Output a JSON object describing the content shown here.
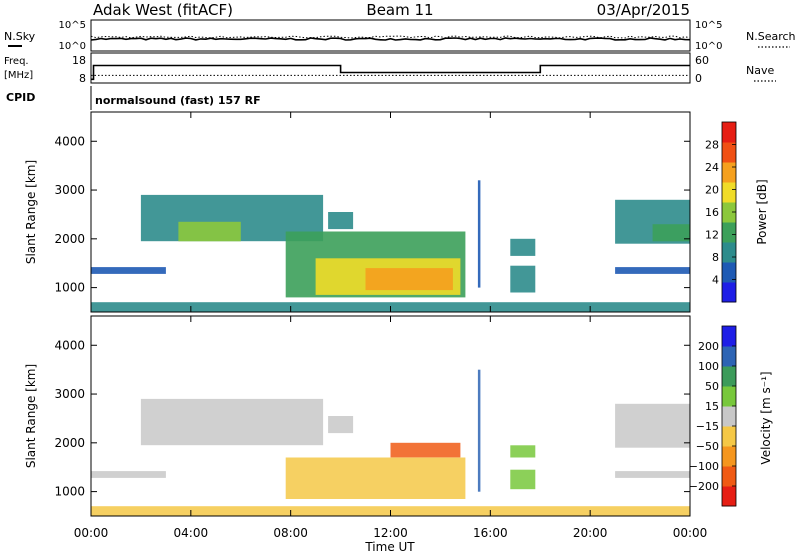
{
  "header": {
    "station": "Adak West (fitACF)",
    "beam": "Beam 11",
    "date": "03/Apr/2015"
  },
  "noise_panel": {
    "left_label": "N.Sky",
    "right_label": "N.Search",
    "left_ticks": [
      "10^5",
      "10^0"
    ],
    "right_ticks": [
      "10^5",
      "10^0"
    ]
  },
  "freq_panel": {
    "left_label_1": "Freq.",
    "left_label_2": "[MHz]",
    "right_label": "Nave",
    "left_ticks": [
      "18",
      "8"
    ],
    "right_ticks": [
      "60",
      "0"
    ],
    "freq_steps": [
      {
        "from_hour": 0.0,
        "to_hour": 0.1,
        "value": 8.5
      },
      {
        "from_hour": 0.1,
        "to_hour": 10.0,
        "value": 14.0
      },
      {
        "from_hour": 10.0,
        "to_hour": 18.0,
        "value": 11.2
      },
      {
        "from_hour": 18.0,
        "to_hour": 24.0,
        "value": 14.0
      }
    ],
    "nave_value": 12
  },
  "cpid": {
    "label": "CPID",
    "value": "normalsound (fast) 157 RF"
  },
  "colors": {
    "power": [
      "#1e1ee6",
      "#1e5ab4",
      "#2d8c8c",
      "#3ca05a",
      "#8cc83c",
      "#f0dc28",
      "#f5a01e",
      "#f05014",
      "#e61e14"
    ],
    "velocity": [
      "#e61e14",
      "#f05a14",
      "#f5961e",
      "#f5c846",
      "#c8c8c8",
      "#78c83c",
      "#3c9b5a",
      "#2d64b4",
      "#1e1ee6"
    ]
  },
  "chart_data": [
    {
      "type": "heatmap",
      "name": "power",
      "ylabel": "Slant Range [km]",
      "yticks": [
        "1000",
        "2000",
        "3000",
        "4000"
      ],
      "ylim": [
        500,
        4600
      ],
      "xlim": [
        0,
        24
      ],
      "colorbar": {
        "label": "Power [dB]",
        "ticks": [
          "4",
          "8",
          "12",
          "16",
          "20",
          "24",
          "28"
        ],
        "range": [
          0,
          32
        ]
      },
      "regions": [
        {
          "t0": 0.0,
          "t1": 3.0,
          "r0": 1280,
          "r1": 1420,
          "value": 6
        },
        {
          "t0": 2.0,
          "t1": 9.3,
          "r0": 1950,
          "r1": 2900,
          "value": 10
        },
        {
          "t0": 3.5,
          "t1": 6.0,
          "r0": 1950,
          "r1": 2350,
          "value": 16
        },
        {
          "t0": 9.5,
          "t1": 10.5,
          "r0": 2200,
          "r1": 2550,
          "value": 10
        },
        {
          "t0": 7.8,
          "t1": 15.0,
          "r0": 800,
          "r1": 2150,
          "value": 12
        },
        {
          "t0": 9.0,
          "t1": 14.8,
          "r0": 850,
          "r1": 1600,
          "value": 20
        },
        {
          "t0": 11.0,
          "t1": 14.5,
          "r0": 950,
          "r1": 1400,
          "value": 24
        },
        {
          "t0": 15.5,
          "t1": 15.6,
          "r0": 1000,
          "r1": 3200,
          "value": 6
        },
        {
          "t0": 16.8,
          "t1": 17.8,
          "r0": 1650,
          "r1": 2000,
          "value": 10
        },
        {
          "t0": 16.8,
          "t1": 17.8,
          "r0": 900,
          "r1": 1450,
          "value": 8
        },
        {
          "t0": 21.0,
          "t1": 24.0,
          "r0": 1900,
          "r1": 2800,
          "value": 10
        },
        {
          "t0": 22.5,
          "t1": 24.0,
          "r0": 1950,
          "r1": 2300,
          "value": 14
        },
        {
          "t0": 21.0,
          "t1": 24.0,
          "r0": 1280,
          "r1": 1420,
          "value": 6
        },
        {
          "t0": 0.0,
          "t1": 24.0,
          "r0": 500,
          "r1": 700,
          "value": 8
        }
      ]
    },
    {
      "type": "heatmap",
      "name": "velocity",
      "ylabel": "Slant Range [km]",
      "yticks": [
        "1000",
        "2000",
        "3000",
        "4000"
      ],
      "ylim": [
        500,
        4600
      ],
      "xlim": [
        0,
        24
      ],
      "xlabel": "Time UT",
      "xticks": [
        "00:00",
        "04:00",
        "08:00",
        "12:00",
        "16:00",
        "20:00",
        "00:00"
      ],
      "colorbar": {
        "label": "Velocity [m s⁻¹]",
        "ticks": [
          "200",
          "100",
          "50",
          "15",
          "−15",
          "−50",
          "−100",
          "−200"
        ],
        "range": [
          -250,
          250
        ]
      },
      "regions": [
        {
          "t0": 0.0,
          "t1": 3.0,
          "r0": 1280,
          "r1": 1420,
          "value": 0
        },
        {
          "t0": 2.0,
          "t1": 9.3,
          "r0": 1950,
          "r1": 2900,
          "value": 0
        },
        {
          "t0": 9.5,
          "t1": 10.5,
          "r0": 2200,
          "r1": 2550,
          "value": 0
        },
        {
          "t0": 7.8,
          "t1": 15.0,
          "r0": 850,
          "r1": 1700,
          "value": -75
        },
        {
          "t0": 12.0,
          "t1": 14.8,
          "r0": 1700,
          "r1": 2000,
          "value": -180
        },
        {
          "t0": 15.5,
          "t1": 15.6,
          "r0": 1000,
          "r1": 3500,
          "value": 150
        },
        {
          "t0": 16.8,
          "t1": 17.8,
          "r0": 1700,
          "r1": 1950,
          "value": 30
        },
        {
          "t0": 16.8,
          "t1": 17.8,
          "r0": 1050,
          "r1": 1450,
          "value": 40
        },
        {
          "t0": 21.0,
          "t1": 24.0,
          "r0": 1900,
          "r1": 2800,
          "value": 0
        },
        {
          "t0": 21.0,
          "t1": 24.0,
          "r0": 1280,
          "r1": 1420,
          "value": 0
        },
        {
          "t0": 0.0,
          "t1": 24.0,
          "r0": 500,
          "r1": 700,
          "value": -30
        }
      ]
    }
  ]
}
